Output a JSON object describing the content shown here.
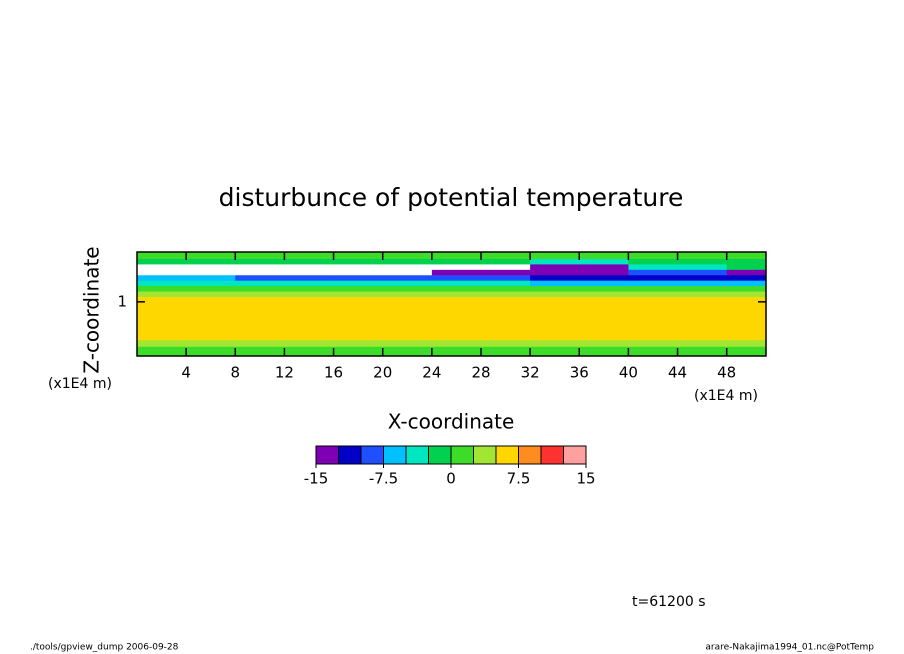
{
  "chart_data": {
    "type": "heatmap",
    "title": "disturbunce of potential temperature",
    "x_label": "X-coordinate",
    "y_label": "Z-coordinate",
    "x_unit": "(x1E4 m)",
    "y_unit": "(x1E4 m)",
    "x": [
      0,
      8,
      16,
      24,
      32,
      40,
      48,
      51.2
    ],
    "z": [
      0,
      0.18,
      0.3,
      1.1,
      1.2,
      1.3,
      1.4,
      1.5,
      1.6,
      1.7,
      1.8,
      1.92
    ],
    "values": [
      [
        1,
        1,
        1,
        1,
        1,
        1,
        1
      ],
      [
        4,
        4,
        4,
        4,
        4,
        4,
        4
      ],
      [
        6,
        6,
        6,
        6,
        6,
        6,
        6
      ],
      [
        4,
        4,
        4,
        4,
        4,
        4,
        4
      ],
      [
        1,
        1,
        1,
        1,
        1,
        1,
        1
      ],
      [
        -3,
        -3,
        -3,
        -4,
        -6,
        -6,
        -6
      ],
      [
        -6,
        -8,
        -8,
        -9,
        -11,
        -11,
        -11
      ],
      [
        -16,
        -16,
        -16,
        -14,
        -14,
        -9,
        -14
      ],
      [
        -16,
        -16,
        -16,
        -16,
        -14,
        -4,
        -1
      ],
      [
        -1,
        -1,
        -1,
        -2,
        -4,
        -1,
        -1
      ],
      [
        1,
        1,
        1,
        1,
        1,
        1,
        1
      ]
    ],
    "xlim": [
      0,
      51.2
    ],
    "ylim": [
      0,
      1.92
    ],
    "xticks": [
      4,
      8,
      12,
      16,
      20,
      24,
      28,
      32,
      36,
      40,
      44,
      48
    ],
    "yticks": [
      1
    ],
    "colorbar": {
      "colors": [
        "#7d00b4",
        "#0000c8",
        "#1e50ff",
        "#00c0ff",
        "#00e6c0",
        "#00d250",
        "#3cdc28",
        "#a0e632",
        "#ffd700",
        "#ff8c1e",
        "#ff3232",
        "#ffa0a0"
      ],
      "lim": [
        -15,
        15
      ],
      "ticks": [
        -15,
        -7.5,
        0,
        7.5,
        15
      ]
    },
    "annotation": "t=61200 s",
    "footer_left": "./tools/gpview_dump  2006-09-28",
    "footer_right": "arare-Nakajima1994_01.nc@PotTemp"
  }
}
